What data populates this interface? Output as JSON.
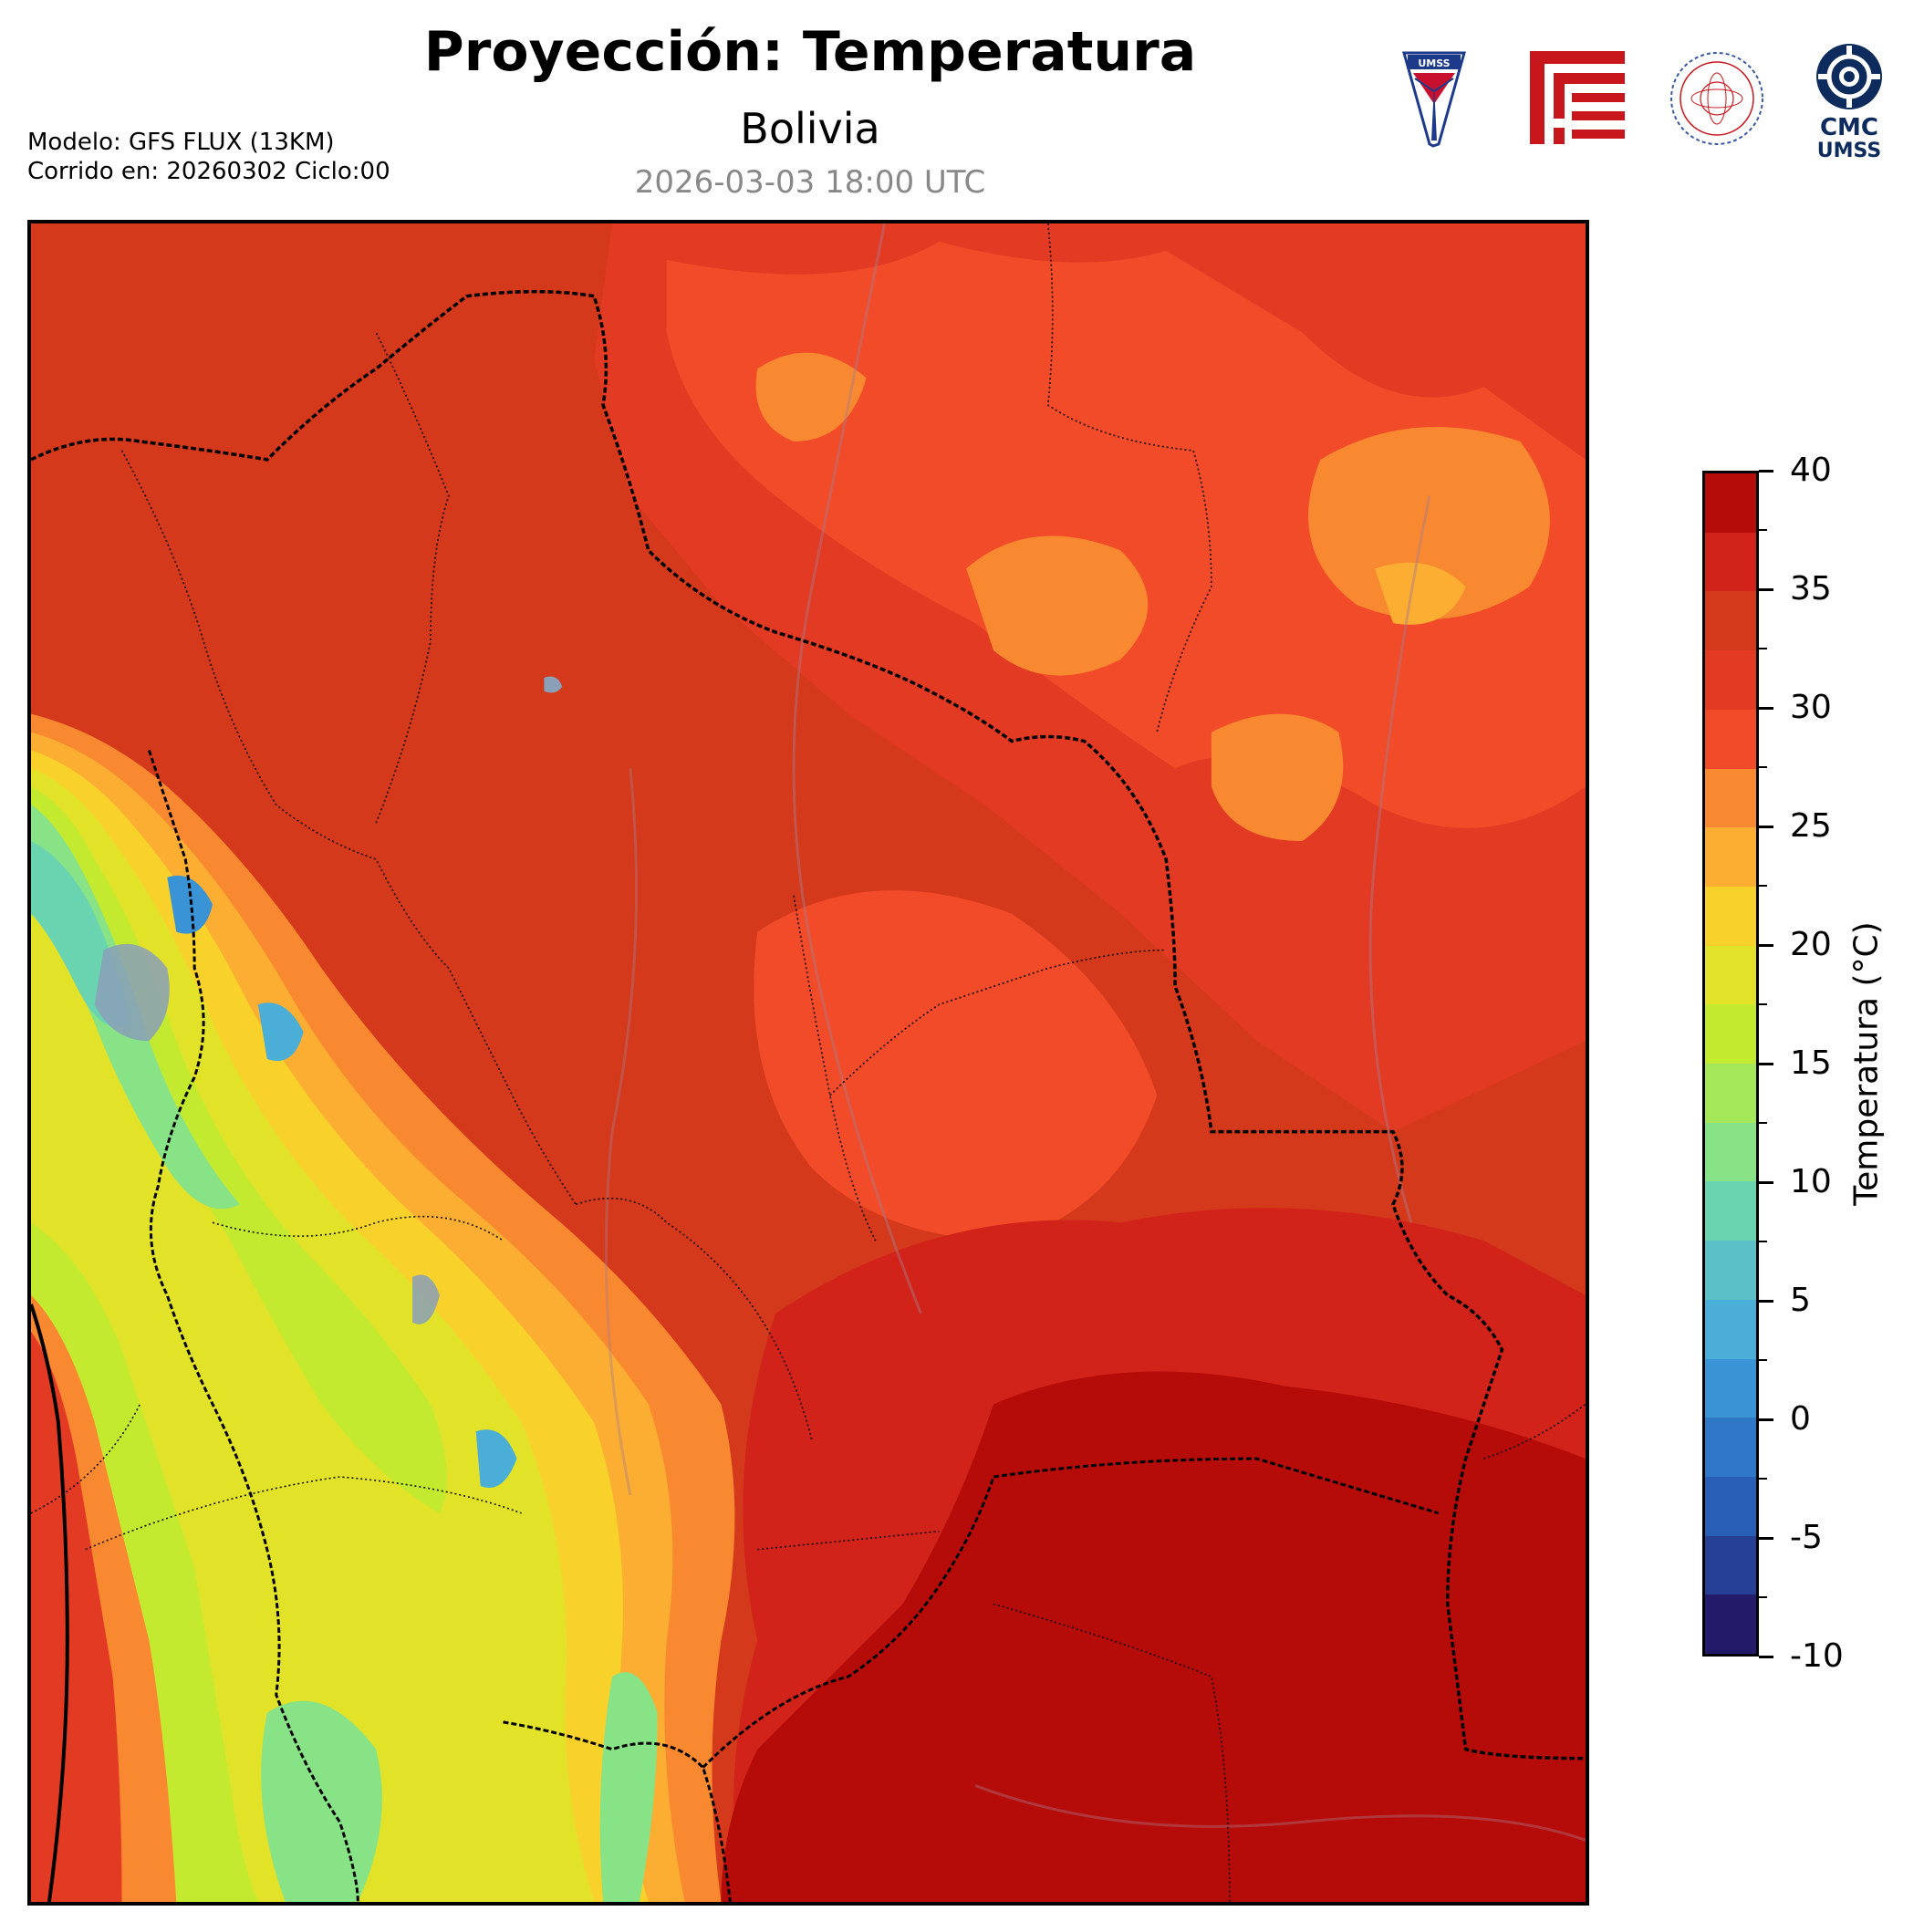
{
  "header": {
    "title": "Proyección: Temperatura",
    "region": "Bolivia",
    "valid_time": "2026-03-03 18:00 UTC",
    "model_line": "Modelo: GFS FLUX (13KM)",
    "run_line": "Corrido en: 20260302 Ciclo:00"
  },
  "logos": [
    {
      "name": "umss-shield-logo",
      "text": "UMSS"
    },
    {
      "name": "fcyt-red-logo",
      "text": ""
    },
    {
      "name": "departamento-fisica-logo",
      "text": "DEPARTAMENTO DE FISICA"
    },
    {
      "name": "cmc-umss-logo",
      "text_top": "CMC",
      "text_bottom": "UMSS"
    }
  ],
  "colorbar": {
    "title": "Temperatura (°C)",
    "min": -10,
    "max": 40,
    "tick_labels": [
      "40",
      "35",
      "30",
      "25",
      "20",
      "15",
      "10",
      "5",
      "0",
      "-5",
      "-10"
    ],
    "levels": [
      {
        "from": 37.5,
        "to": 40,
        "color": "#b50c0a"
      },
      {
        "from": 35,
        "to": 37.5,
        "color": "#d2231a"
      },
      {
        "from": 32.5,
        "to": 35,
        "color": "#d4391c"
      },
      {
        "from": 30,
        "to": 32.5,
        "color": "#e33a24"
      },
      {
        "from": 27.5,
        "to": 30,
        "color": "#f24b29"
      },
      {
        "from": 25,
        "to": 27.5,
        "color": "#f98931"
      },
      {
        "from": 22.5,
        "to": 25,
        "color": "#fbae32"
      },
      {
        "from": 20,
        "to": 22.5,
        "color": "#f8d22b"
      },
      {
        "from": 17.5,
        "to": 20,
        "color": "#e2e328"
      },
      {
        "from": 15,
        "to": 17.5,
        "color": "#c3ea2e"
      },
      {
        "from": 12.5,
        "to": 15,
        "color": "#a4e85a"
      },
      {
        "from": 10,
        "to": 12.5,
        "color": "#88e286"
      },
      {
        "from": 7.5,
        "to": 10,
        "color": "#6ad3b0"
      },
      {
        "from": 5,
        "to": 7.5,
        "color": "#5cc0c8"
      },
      {
        "from": 2.5,
        "to": 5,
        "color": "#4aaed7"
      },
      {
        "from": 0,
        "to": 2.5,
        "color": "#3a93d5"
      },
      {
        "from": -2.5,
        "to": 0,
        "color": "#2f78c8"
      },
      {
        "from": -5,
        "to": -2.5,
        "color": "#2a5fb6"
      },
      {
        "from": -7.5,
        "to": -5,
        "color": "#243f94"
      },
      {
        "from": -10,
        "to": -7.5,
        "color": "#231a6a"
      }
    ]
  },
  "map": {
    "colors": {
      "darkest_red": "#b50c0a",
      "red": "#d2231a",
      "base_red": "#d4391c",
      "orange_red": "#f24b29",
      "orange": "#f98931",
      "light_orange": "#fbae32",
      "yellow": "#f8d22b",
      "yellow_green": "#e2e328",
      "green_yellow": "#c3ea2e",
      "light_green": "#88e286",
      "teal": "#6ad3b0",
      "blue": "#3a93d5",
      "lake_gray": "#8a9fb8"
    }
  }
}
